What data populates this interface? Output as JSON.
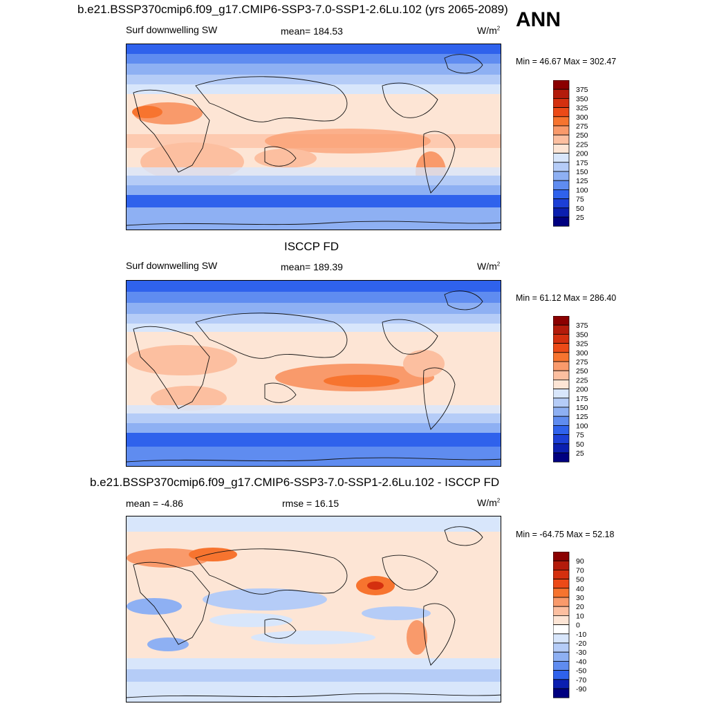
{
  "season": "ANN",
  "panels": [
    {
      "id": "model",
      "title": "b.e21.BSSP370cmip6.f09_g17.CMIP6-SSP3-7.0-SSP1-2.6Lu.102 (yrs 2065-2089)",
      "left_label": "Surf downwelling SW",
      "center_label": "mean= 184.53",
      "units_base": "W/m",
      "units_exp": "2",
      "minmax": "Min =  46.67 Max = 302.47",
      "colorbar_labels": [
        "375",
        "350",
        "325",
        "300",
        "275",
        "250",
        "225",
        "200",
        "175",
        "150",
        "125",
        "100",
        "75",
        "50",
        "25"
      ],
      "colorbar_colors": [
        "#8b0000",
        "#b31b0b",
        "#d4300f",
        "#ec4a17",
        "#f7742f",
        "#f99a6b",
        "#fcbfa0",
        "#fde5d5",
        "#d8e6fb",
        "#b5ccf7",
        "#8eb0f3",
        "#5f8cf0",
        "#2f62ec",
        "#1c3fd6",
        "#0b1fb0",
        "#000080"
      ]
    },
    {
      "id": "obs",
      "title": "ISCCP FD",
      "left_label": "Surf downwelling SW",
      "center_label": "mean= 189.39",
      "units_base": "W/m",
      "units_exp": "2",
      "minmax": "Min =  61.12 Max = 286.40",
      "colorbar_labels": [
        "375",
        "350",
        "325",
        "300",
        "275",
        "250",
        "225",
        "200",
        "175",
        "150",
        "125",
        "100",
        "75",
        "50",
        "25"
      ],
      "colorbar_colors": [
        "#8b0000",
        "#b31b0b",
        "#d4300f",
        "#ec4a17",
        "#f7742f",
        "#f99a6b",
        "#fcbfa0",
        "#fde5d5",
        "#d8e6fb",
        "#b5ccf7",
        "#8eb0f3",
        "#5f8cf0",
        "#2f62ec",
        "#1c3fd6",
        "#0b1fb0",
        "#000080"
      ]
    },
    {
      "id": "diff",
      "title": "b.e21.BSSP370cmip6.f09_g17.CMIP6-SSP3-7.0-SSP1-2.6Lu.102 - ISCCP FD",
      "left_label": "mean =  -4.86",
      "center_label": "rmse =  16.15",
      "units_base": "W/m",
      "units_exp": "2",
      "minmax": "Min = -64.75 Max =  52.18",
      "colorbar_labels": [
        "90",
        "70",
        "50",
        "40",
        "30",
        "20",
        "10",
        "0",
        "-10",
        "-20",
        "-30",
        "-40",
        "-50",
        "-70",
        "-90"
      ],
      "colorbar_colors": [
        "#8b0000",
        "#b31b0b",
        "#d4300f",
        "#ec4a17",
        "#f7742f",
        "#f99a6b",
        "#fcbfa0",
        "#fde5d5",
        "#ffffff",
        "#d8e6fb",
        "#b5ccf7",
        "#8eb0f3",
        "#5f8cf0",
        "#2f62ec",
        "#0b1fb0",
        "#000080"
      ]
    }
  ]
}
